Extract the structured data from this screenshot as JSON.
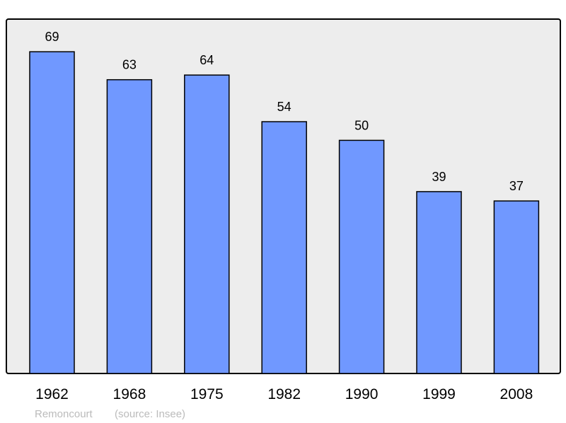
{
  "chart_data": {
    "type": "bar",
    "categories": [
      "1962",
      "1968",
      "1975",
      "1982",
      "1990",
      "1999",
      "2008"
    ],
    "values": [
      69,
      63,
      64,
      54,
      50,
      39,
      37
    ],
    "title": "",
    "xlabel": "",
    "ylabel": "",
    "ylim": [
      0,
      76
    ],
    "grid": false,
    "bar_color": "#7098ff",
    "background_color": "#ededed"
  },
  "footer": {
    "place": "Remoncourt",
    "source": "(source: Insee)"
  }
}
